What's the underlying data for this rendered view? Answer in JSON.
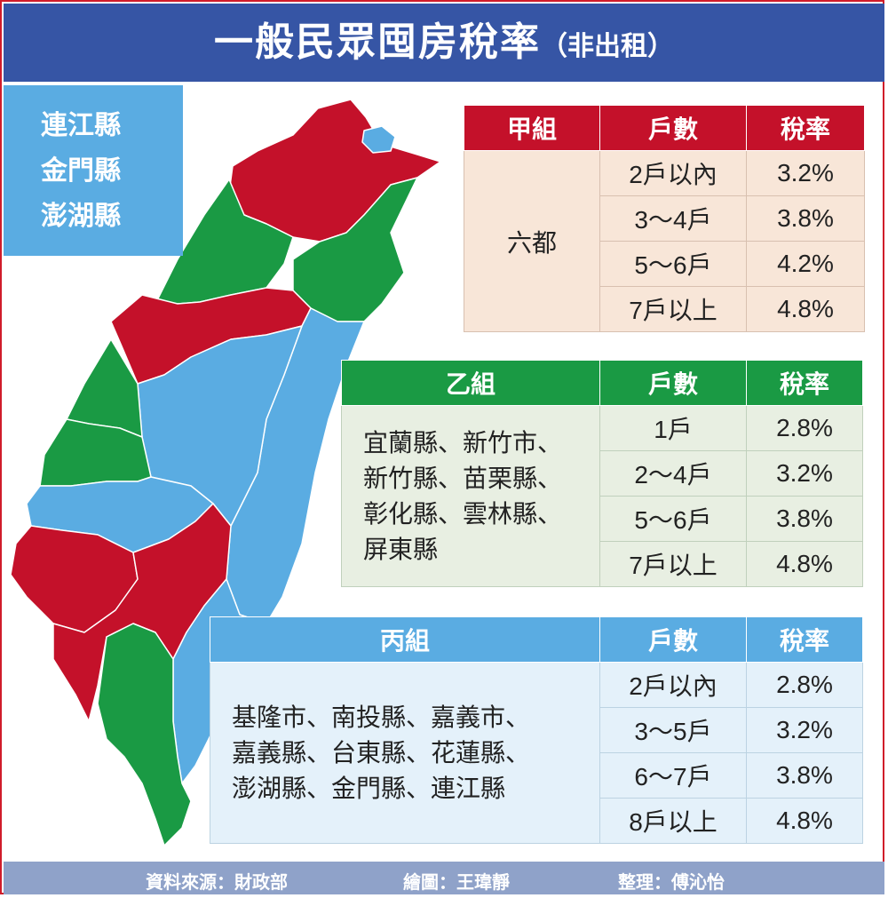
{
  "header": {
    "title": "一般民眾囤房稅率",
    "subtitle": "（非出租）"
  },
  "islands": [
    "連江縣",
    "金門縣",
    "澎湖縣"
  ],
  "colors": {
    "red": "#c4112a",
    "green": "#1a9a44",
    "blue": "#5aace2",
    "header": "#3655a5"
  },
  "group_a": {
    "headers": [
      "甲組",
      "戶數",
      "稅率"
    ],
    "region": "六都",
    "rows": [
      {
        "count": "2戶以內",
        "rate": "3.2%"
      },
      {
        "count": "3～4戶",
        "rate": "3.8%"
      },
      {
        "count": "5～6戶",
        "rate": "4.2%"
      },
      {
        "count": "7戶以上",
        "rate": "4.8%"
      }
    ]
  },
  "group_b": {
    "headers": [
      "乙組",
      "戶數",
      "稅率"
    ],
    "region_lines": [
      "宜蘭縣、新竹市、",
      "新竹縣、苗栗縣、",
      "彰化縣、雲林縣、",
      "屏東縣"
    ],
    "rows": [
      {
        "count": "1戶",
        "rate": "2.8%"
      },
      {
        "count": "2～4戶",
        "rate": "3.2%"
      },
      {
        "count": "5～6戶",
        "rate": "3.8%"
      },
      {
        "count": "7戶以上",
        "rate": "4.8%"
      }
    ]
  },
  "group_c": {
    "headers": [
      "丙組",
      "戶數",
      "稅率"
    ],
    "region_lines": [
      "基隆市、南投縣、嘉義市、",
      "嘉義縣、台東縣、花蓮縣、",
      "澎湖縣、金門縣、連江縣"
    ],
    "rows": [
      {
        "count": "2戶以內",
        "rate": "2.8%"
      },
      {
        "count": "3～5戶",
        "rate": "3.2%"
      },
      {
        "count": "6～7戶",
        "rate": "3.8%"
      },
      {
        "count": "8戶以上",
        "rate": "4.8%"
      }
    ]
  },
  "footer": {
    "source": "資料來源：財政部",
    "drawing": "繪圖：王瑋靜",
    "editor": "整理：傅沁怡"
  }
}
